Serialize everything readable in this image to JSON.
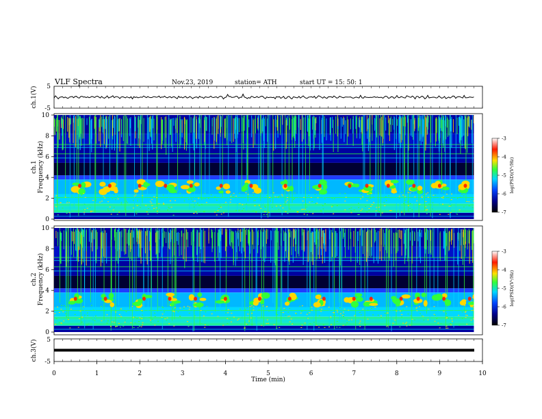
{
  "header": {
    "title": "VLF  Spectra",
    "date": "Nov.23, 2019",
    "station": "station= ATH",
    "start": "start  UT  =    15: 50: 1"
  },
  "chart_data": [
    {
      "type": "line",
      "ylabel": "ch.1(V)",
      "ylim": [
        -5,
        5
      ],
      "yticks": [
        "5",
        "-5"
      ],
      "x_range": [
        0,
        10
      ],
      "description_values": "waveform near 0 V with small spikes",
      "color": "#000000"
    },
    {
      "type": "heatmap",
      "ylabel": "ch.1\nFrequency  (kHz)",
      "ylabel_lines": [
        "ch.1",
        "Frequency  (kHz)"
      ],
      "ylim": [
        0,
        10
      ],
      "yticks": [
        "0",
        "2",
        "4",
        "6",
        "8",
        "10"
      ],
      "x_range": [
        0,
        9.8
      ],
      "colorbar": {
        "label": "log(PSD)(V²/Hz)",
        "ticks": [
          "-3",
          "-4",
          "-5",
          "-6",
          "-7"
        ],
        "range": [
          -7,
          -3
        ]
      },
      "bands_khz": {
        "strong_low": [
          0,
          1.5
        ],
        "chorus": [
          2.5,
          3.8
        ],
        "quiet_gap": [
          4.2,
          5.2
        ],
        "sferics_top": [
          7.5,
          10
        ]
      },
      "chorus_bursts_min": [
        0.6,
        1.3,
        2.0,
        2.6,
        3.2,
        3.9,
        4.6,
        5.4,
        6.2,
        6.9,
        7.3,
        7.8,
        8.4,
        9.0,
        9.6
      ]
    },
    {
      "type": "heatmap",
      "ylabel": "ch.2\nFrequency  (kHz)",
      "ylabel_lines": [
        "ch.2",
        "Frequency  (kHz)"
      ],
      "ylim": [
        0,
        10
      ],
      "yticks": [
        "0",
        "2",
        "4",
        "6",
        "8",
        "10"
      ],
      "x_range": [
        0,
        9.8
      ],
      "colorbar": {
        "label": "log(PSD)(V²/Hz)",
        "ticks": [
          "-3",
          "-4",
          "-5",
          "-6",
          "-7"
        ],
        "range": [
          -7,
          -3
        ]
      },
      "chorus_bursts_min": [
        0.5,
        1.2,
        2.1,
        2.7,
        3.3,
        4.0,
        4.8,
        5.5,
        6.3,
        7.0,
        7.4,
        8.1,
        8.5,
        9.1,
        9.7
      ]
    },
    {
      "type": "line",
      "ylabel": "ch.3(V)",
      "ylim": [
        -5,
        5
      ],
      "yticks": [
        "5",
        "-5"
      ],
      "x_range": [
        0,
        9.8
      ],
      "description_values": "flat thick line near -1 V",
      "color": "#000000"
    }
  ],
  "xaxis": {
    "label": "Time  (min)",
    "ticks": [
      "0",
      "1",
      "2",
      "3",
      "4",
      "5",
      "6",
      "7",
      "8",
      "9",
      "10"
    ],
    "range": [
      0,
      10
    ]
  },
  "colors": {
    "dark_navy": "#000033",
    "navy": "#0000a0",
    "blue": "#1f3dff",
    "cyan": "#00d8ff",
    "green": "#32ff3a",
    "yellow": "#ffd800",
    "red": "#ff1a00"
  }
}
